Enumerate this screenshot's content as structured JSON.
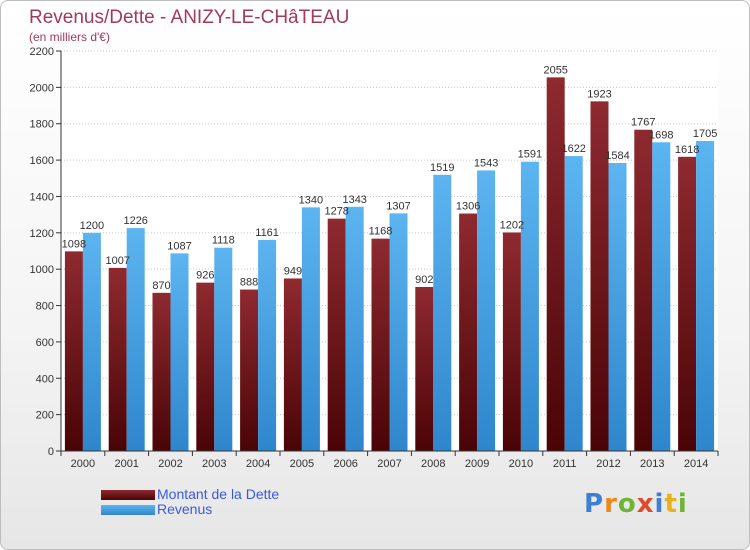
{
  "chart_data": {
    "type": "bar",
    "title": "Revenus/Dette - ANIZY-LE-CHâTEAU",
    "subtitle": "(en milliers d'€)",
    "categories": [
      "2000",
      "2001",
      "2002",
      "2003",
      "2004",
      "2005",
      "2006",
      "2007",
      "2008",
      "2009",
      "2010",
      "2011",
      "2012",
      "2013",
      "2014"
    ],
    "series": [
      {
        "name": "Montant de la Dette",
        "color": "#6e0f14",
        "values": [
          1098,
          1007,
          870,
          926,
          888,
          949,
          1278,
          1168,
          902,
          1306,
          1202,
          2055,
          1923,
          1767,
          1618
        ],
        "labels": [
          "1098",
          "1007",
          "870",
          "926",
          "888",
          "949",
          "1278",
          "1168",
          "902",
          "1306",
          "1202",
          "2055",
          "1923",
          "1767",
          "1618"
        ]
      },
      {
        "name": "Revenus",
        "color": "#4ea6e6",
        "values": [
          1200,
          1226,
          1087,
          1118,
          1161,
          1340,
          1343,
          1307,
          1519,
          1543,
          1591,
          1622,
          1584,
          1698,
          1705
        ],
        "labels": [
          "1200",
          "1226",
          "1087",
          "1118",
          "1161",
          "1340",
          "1343",
          "1307",
          "1519",
          "1543",
          "1591",
          "1622",
          "1584",
          "1698",
          "1705"
        ]
      }
    ],
    "ylim": [
      0,
      2200
    ],
    "yticks": [
      "0",
      "200",
      "400",
      "600",
      "800",
      "1000",
      "1200",
      "1400",
      "1600",
      "1800",
      "2000",
      "2200"
    ],
    "grid": true,
    "legend_position": "bottom-left"
  },
  "brand": {
    "letters": [
      {
        "char": "P",
        "color": "#3f7fd1"
      },
      {
        "char": "r",
        "color": "#e88a1a"
      },
      {
        "char": "o",
        "color": "#6fb535"
      },
      {
        "char": "x",
        "color": "#e04a2c"
      },
      {
        "char": "i",
        "color": "#3f7fd1"
      },
      {
        "char": "t",
        "color": "#e8b21a"
      },
      {
        "char": "i",
        "color": "#6fb535"
      }
    ]
  }
}
